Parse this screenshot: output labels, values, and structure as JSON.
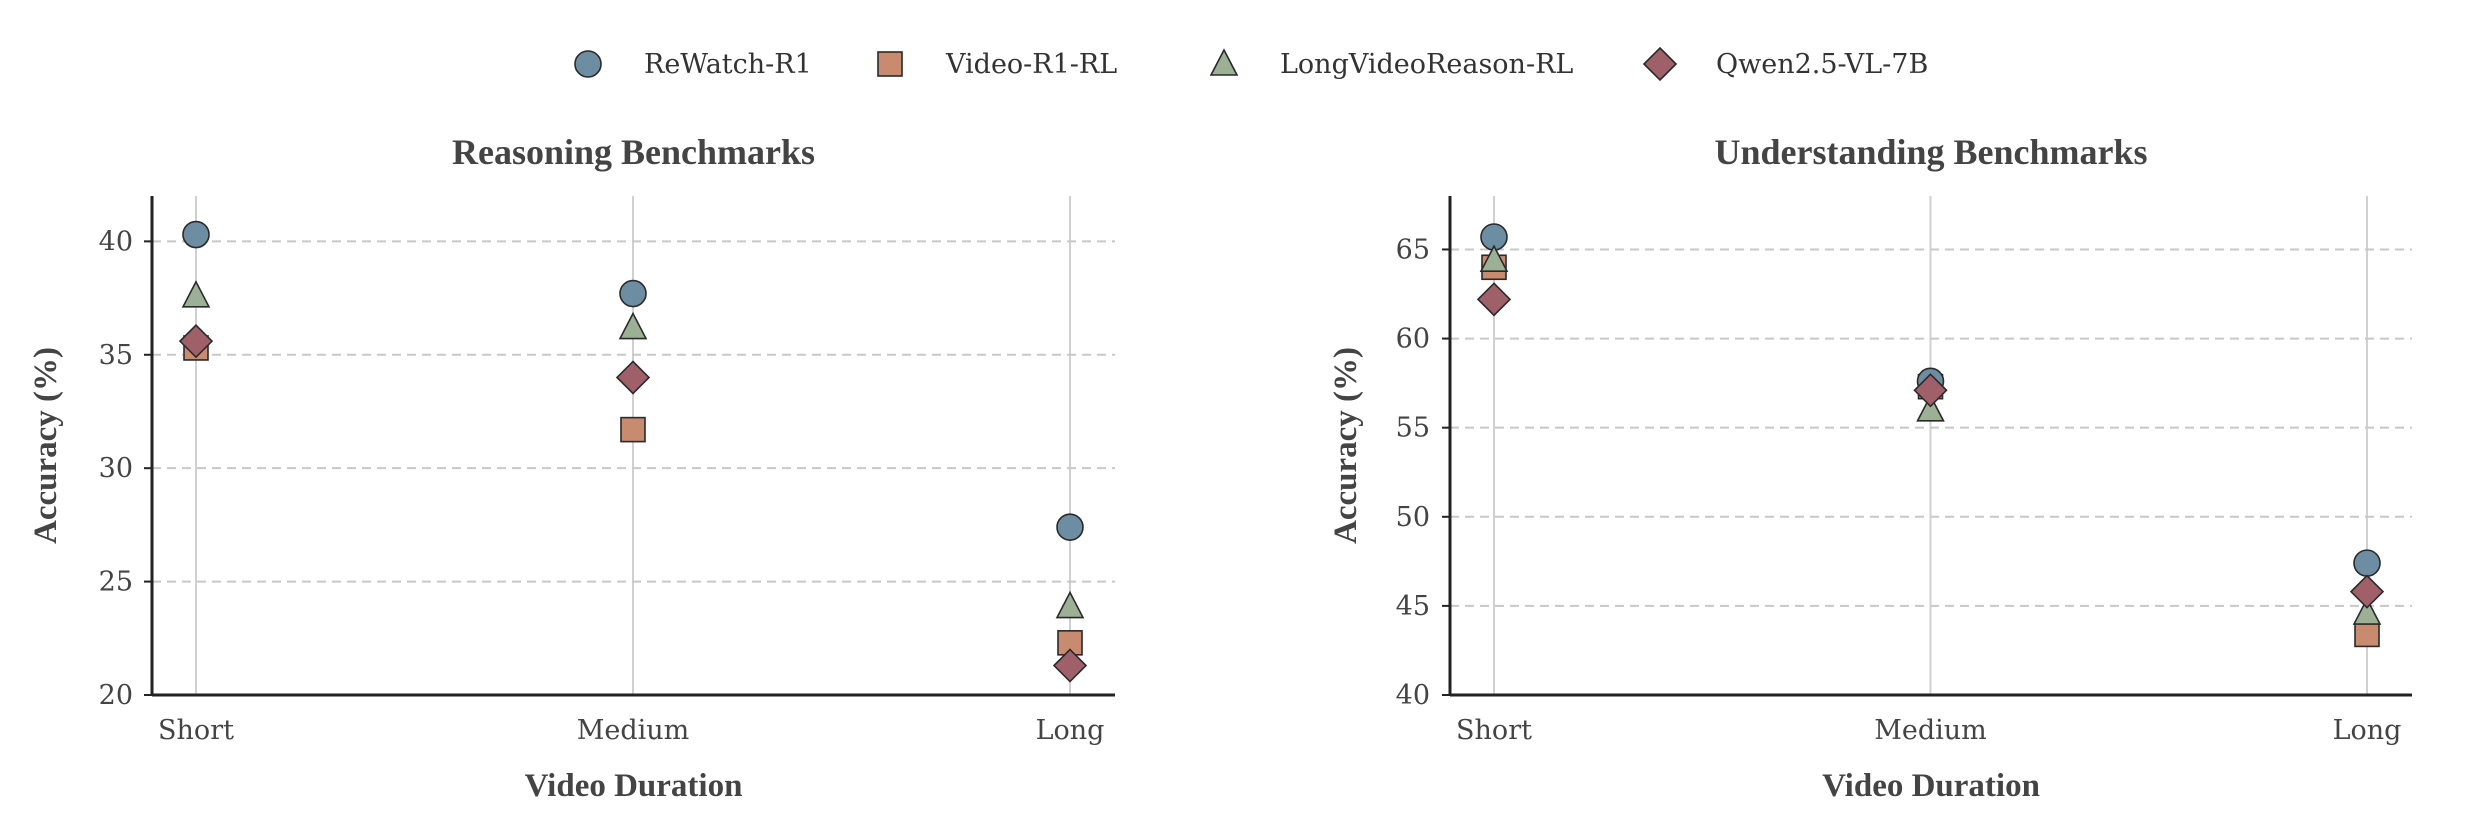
{
  "colors": {
    "rewatch": "#6d8ea2",
    "videor1": "#c98b6f",
    "longvideo": "#9bb094",
    "qwen": "#a0606a"
  },
  "chart_data": [
    {
      "type": "scatter",
      "title": "Reasoning Benchmarks",
      "xlabel": "Video Duration",
      "ylabel": "Accuracy (%)",
      "categories": [
        "Short",
        "Medium",
        "Long"
      ],
      "ylim": [
        20,
        42
      ],
      "yticks": [
        20,
        25,
        30,
        35,
        40
      ],
      "grid": "horizontal-dashed",
      "series": [
        {
          "name": "ReWatch-R1",
          "marker": "circle",
          "values": [
            40.3,
            37.7,
            27.4
          ]
        },
        {
          "name": "Video-R1-RL",
          "marker": "square",
          "values": [
            35.3,
            31.7,
            22.3
          ]
        },
        {
          "name": "LongVideoReason-RL",
          "marker": "triangle",
          "values": [
            37.6,
            36.2,
            23.9
          ]
        },
        {
          "name": "Qwen2.5-VL-7B",
          "marker": "diamond",
          "values": [
            35.6,
            34.0,
            21.3
          ]
        }
      ]
    },
    {
      "type": "scatter",
      "title": "Understanding Benchmarks",
      "xlabel": "Video Duration",
      "ylabel": "Accuracy (%)",
      "categories": [
        "Short",
        "Medium",
        "Long"
      ],
      "ylim": [
        40,
        68
      ],
      "yticks": [
        40,
        45,
        50,
        55,
        60,
        65
      ],
      "grid": "horizontal-dashed",
      "series": [
        {
          "name": "ReWatch-R1",
          "marker": "circle",
          "values": [
            65.7,
            57.6,
            47.4
          ]
        },
        {
          "name": "Video-R1-RL",
          "marker": "square",
          "values": [
            64.0,
            57.3,
            43.4
          ]
        },
        {
          "name": "LongVideoReason-RL",
          "marker": "triangle",
          "values": [
            64.4,
            56.0,
            44.6
          ]
        },
        {
          "name": "Qwen2.5-VL-7B",
          "marker": "diamond",
          "values": [
            62.2,
            57.1,
            45.8
          ]
        }
      ]
    }
  ],
  "legend": {
    "placement": "top-center",
    "items": [
      "ReWatch-R1",
      "Video-R1-RL",
      "LongVideoReason-RL",
      "Qwen2.5-VL-7B"
    ]
  }
}
